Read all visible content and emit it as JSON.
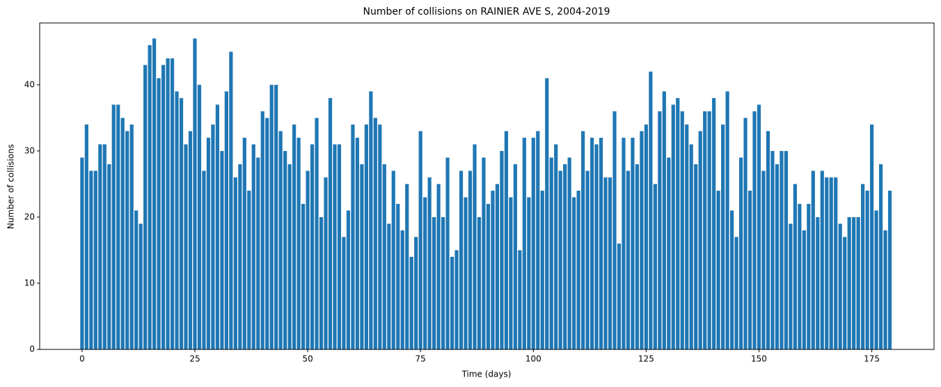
{
  "chart_data": {
    "type": "bar",
    "title": "Number of collisions on RAINIER AVE S, 2004-2019",
    "x_label": "Time (days)",
    "y_label": "Number of collisions",
    "color": "#1f77b4",
    "bar_width": 0.8,
    "x": [
      0,
      1,
      2,
      3,
      4,
      5,
      6,
      7,
      8,
      9,
      10,
      11,
      12,
      13,
      14,
      15,
      16,
      17,
      18,
      19,
      20,
      21,
      22,
      23,
      24,
      25,
      26,
      27,
      28,
      29,
      30,
      31,
      32,
      33,
      34,
      35,
      36,
      37,
      38,
      39,
      40,
      41,
      42,
      43,
      44,
      45,
      46,
      47,
      48,
      49,
      50,
      51,
      52,
      53,
      54,
      55,
      56,
      57,
      58,
      59,
      60,
      61,
      62,
      63,
      64,
      65,
      66,
      67,
      68,
      69,
      70,
      71,
      72,
      73,
      74,
      75,
      76,
      77,
      78,
      79,
      80,
      81,
      82,
      83,
      84,
      85,
      86,
      87,
      88,
      89,
      90,
      91,
      92,
      93,
      94,
      95,
      96,
      97,
      98,
      99,
      100,
      101,
      102,
      103,
      104,
      105,
      106,
      107,
      108,
      109,
      110,
      111,
      112,
      113,
      114,
      115,
      116,
      117,
      118,
      119,
      120,
      121,
      122,
      123,
      124,
      125,
      126,
      127,
      128,
      129,
      130,
      131,
      132,
      133,
      134,
      135,
      136,
      137,
      138,
      139,
      140,
      141,
      142,
      143,
      144,
      145,
      146,
      147,
      148,
      149,
      150,
      151,
      152,
      153,
      154,
      155,
      156,
      157,
      158,
      159,
      160,
      161,
      162,
      163,
      164,
      165,
      166,
      167,
      168,
      169,
      170,
      171,
      172,
      173,
      174,
      175,
      176,
      177,
      178,
      179
    ],
    "values": [
      29,
      34,
      27,
      27,
      31,
      31,
      28,
      37,
      37,
      35,
      33,
      34,
      21,
      19,
      43,
      46,
      47,
      41,
      43,
      44,
      44,
      39,
      38,
      31,
      33,
      47,
      40,
      27,
      32,
      34,
      37,
      30,
      39,
      45,
      26,
      28,
      32,
      24,
      31,
      29,
      36,
      35,
      40,
      40,
      33,
      30,
      28,
      34,
      32,
      22,
      27,
      31,
      35,
      20,
      26,
      38,
      31,
      31,
      17,
      21,
      34,
      32,
      28,
      34,
      39,
      35,
      34,
      28,
      19,
      27,
      22,
      18,
      25,
      14,
      17,
      33,
      23,
      26,
      20,
      25,
      20,
      29,
      14,
      15,
      27,
      23,
      27,
      31,
      20,
      29,
      22,
      24,
      25,
      30,
      33,
      23,
      28,
      15,
      32,
      23,
      32,
      33,
      24,
      41,
      29,
      31,
      27,
      28,
      29,
      23,
      24,
      33,
      27,
      32,
      31,
      32,
      26,
      26,
      36,
      16,
      32,
      27,
      32,
      28,
      33,
      34,
      42,
      25,
      36,
      39,
      29,
      37,
      38,
      36,
      34,
      31,
      28,
      33,
      36,
      36,
      38,
      24,
      34,
      39,
      21,
      17,
      29,
      35,
      24,
      36,
      37,
      27,
      33,
      30,
      28,
      30,
      30,
      19,
      25,
      22,
      18,
      22,
      27,
      20,
      27,
      26,
      26,
      26,
      19,
      17,
      20,
      20,
      20,
      25,
      24,
      34,
      21,
      28,
      18,
      24
    ],
    "xlim": [
      -9.39,
      188.79
    ],
    "xticks": [
      0,
      25,
      50,
      75,
      100,
      125,
      150,
      175
    ],
    "ylim": [
      0,
      49.35
    ],
    "yticks": [
      0,
      10,
      20,
      30,
      40
    ]
  }
}
